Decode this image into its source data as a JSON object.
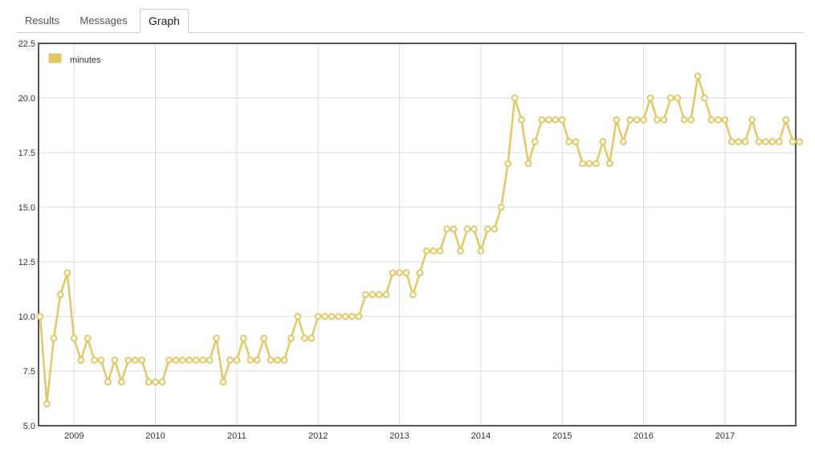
{
  "tabs": [
    {
      "label": "Results",
      "active": false
    },
    {
      "label": "Messages",
      "active": false
    },
    {
      "label": "Graph",
      "active": true
    }
  ],
  "colors": {
    "series": "#e3c867",
    "grid": "#dddddd",
    "frame": "#555555"
  },
  "chart_data": {
    "type": "line",
    "title": "",
    "xlabel": "",
    "ylabel": "",
    "grid": true,
    "legend_position": "top-left",
    "x_ticks": [
      "2009",
      "2010",
      "2011",
      "2012",
      "2013",
      "2014",
      "2015",
      "2016",
      "2017"
    ],
    "y_ticks": [
      "5.0",
      "7.5",
      "10.0",
      "12.5",
      "15.0",
      "17.5",
      "20.0",
      "22.5"
    ],
    "ylim": [
      5,
      22.5
    ],
    "x_start": "2008-08",
    "x_step": "1 month",
    "series": [
      {
        "name": "minutes",
        "color": "#e3c867",
        "values": [
          10,
          6,
          9,
          11,
          12,
          9,
          8,
          9,
          8,
          8,
          7,
          8,
          7,
          8,
          8,
          8,
          7,
          7,
          7,
          8,
          8,
          8,
          8,
          8,
          8,
          8,
          9,
          7,
          8,
          8,
          9,
          8,
          8,
          9,
          8,
          8,
          8,
          9,
          10,
          9,
          9,
          10,
          10,
          10,
          10,
          10,
          10,
          10,
          11,
          11,
          11,
          11,
          12,
          12,
          12,
          11,
          12,
          13,
          13,
          13,
          14,
          14,
          13,
          14,
          14,
          13,
          14,
          14,
          15,
          17,
          20,
          19,
          17,
          18,
          19,
          19,
          19,
          19,
          18,
          18,
          17,
          17,
          17,
          18,
          17,
          19,
          18,
          19,
          19,
          19,
          20,
          19,
          19,
          20,
          20,
          19,
          19,
          21,
          20,
          19,
          19,
          19,
          18,
          18,
          18,
          19,
          18,
          18,
          18,
          18,
          19,
          18,
          18
        ]
      }
    ]
  }
}
